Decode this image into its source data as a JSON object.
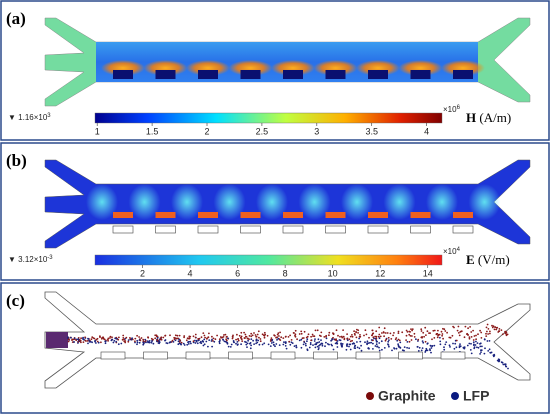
{
  "panels": [
    {
      "label": "(a)",
      "colorbar": {
        "min_marker": {
          "mantissa": "▼ 1.16×10",
          "exponent": "3"
        },
        "scale": {
          "mantissa": "×10",
          "exponent": "6"
        },
        "range": [
          0.98,
          4.14
        ],
        "ticks": [
          1,
          1.5,
          2,
          2.5,
          3,
          3.5,
          4
        ]
      },
      "quantity": {
        "symbol": "H",
        "unit": " (A/m)"
      }
    },
    {
      "label": "(b)",
      "colorbar": {
        "min_marker": {
          "mantissa": "▼ 3.12×10",
          "exponent": "-3"
        },
        "scale": {
          "mantissa": "×10",
          "exponent": "4"
        },
        "range": [
          0,
          14.6
        ],
        "ticks": [
          2,
          4,
          6,
          8,
          10,
          12,
          14
        ]
      },
      "quantity": {
        "symbol": "E",
        "unit": " (V/m)"
      }
    },
    {
      "label": "(c)",
      "legend": [
        "Graphite",
        "LFP"
      ]
    }
  ]
}
